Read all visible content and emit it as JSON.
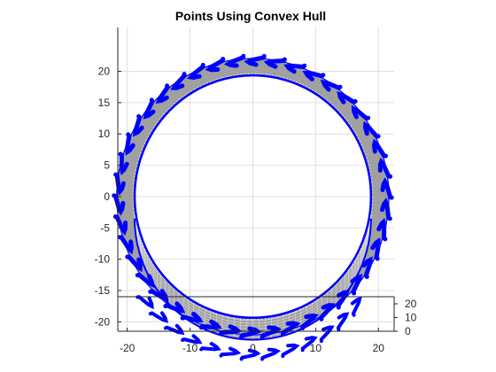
{
  "chart_data": {
    "type": "scatter",
    "title": "Points Using Convex Hull",
    "xlabel": "",
    "ylabel": "",
    "xlim": [
      -21.5,
      22.5
    ],
    "ylim": [
      -21.5,
      27
    ],
    "x_ticks": [
      -20,
      -10,
      0,
      10,
      20
    ],
    "y_ticks": [
      -20,
      -15,
      -10,
      -5,
      0,
      5,
      10,
      15,
      20
    ],
    "z_ticks": [
      0,
      10,
      20
    ],
    "grid": true,
    "tire": {
      "outer_radius": 22,
      "inner_radius": 19.3,
      "depth_offset": 3.5,
      "tread_count": 42
    },
    "colors": {
      "points": "#0000ff",
      "hull_fill": "#a0a0a0",
      "hull_edge": "#ffffff",
      "axes": "#262626",
      "grid": "#dfdfdf"
    }
  }
}
